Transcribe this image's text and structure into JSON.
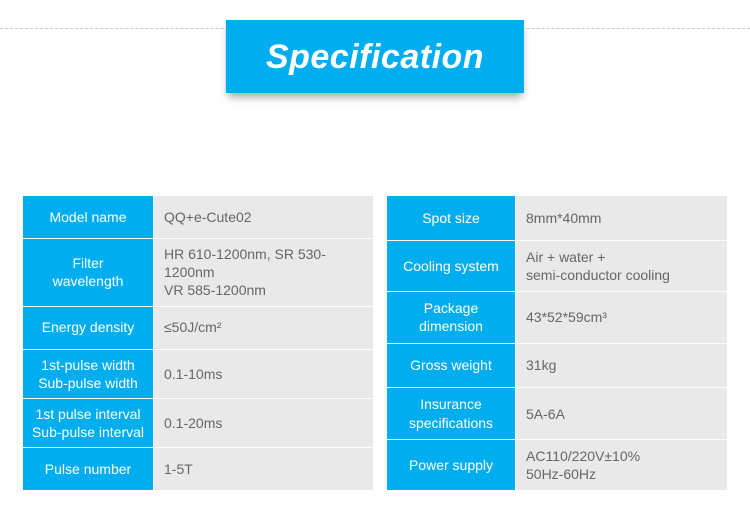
{
  "title": "Specification",
  "colors": {
    "accent": "#00aeef",
    "value_bg": "#e9e9e9",
    "value_text": "#666666",
    "title_text": "#ffffff"
  },
  "left_rows": [
    {
      "label": "Model name",
      "value": "QQ+e-Cute02",
      "multiline_label": false
    },
    {
      "label": "Filter\nwavelength",
      "value": "HR 610-1200nm, SR 530-1200nm\nVR 585-1200nm",
      "multiline_label": true
    },
    {
      "label": "Energy density",
      "value": "≤50J/cm²",
      "multiline_label": false
    },
    {
      "label": "1st-pulse width\nSub-pulse width",
      "value": "0.1-10ms",
      "multiline_label": true
    },
    {
      "label": "1st pulse interval\nSub-pulse interval",
      "value": "0.1-20ms",
      "multiline_label": true
    },
    {
      "label": "Pulse number",
      "value": "1-5T",
      "multiline_label": false
    }
  ],
  "right_rows": [
    {
      "label": "Spot size",
      "value": "8mm*40mm",
      "multiline_label": false
    },
    {
      "label": "Cooling system",
      "value": "Air + water +\nsemi-conductor cooling",
      "multiline_label": false
    },
    {
      "label": "Package\ndimension",
      "value": "43*52*59cm³",
      "multiline_label": true
    },
    {
      "label": "Gross weight",
      "value": "31kg",
      "multiline_label": false
    },
    {
      "label": "Insurance\nspecifications",
      "value": "5A-6A",
      "multiline_label": true
    },
    {
      "label": "Power supply",
      "value": "AC110/220V±10%\n50Hz-60Hz",
      "multiline_label": false
    }
  ]
}
